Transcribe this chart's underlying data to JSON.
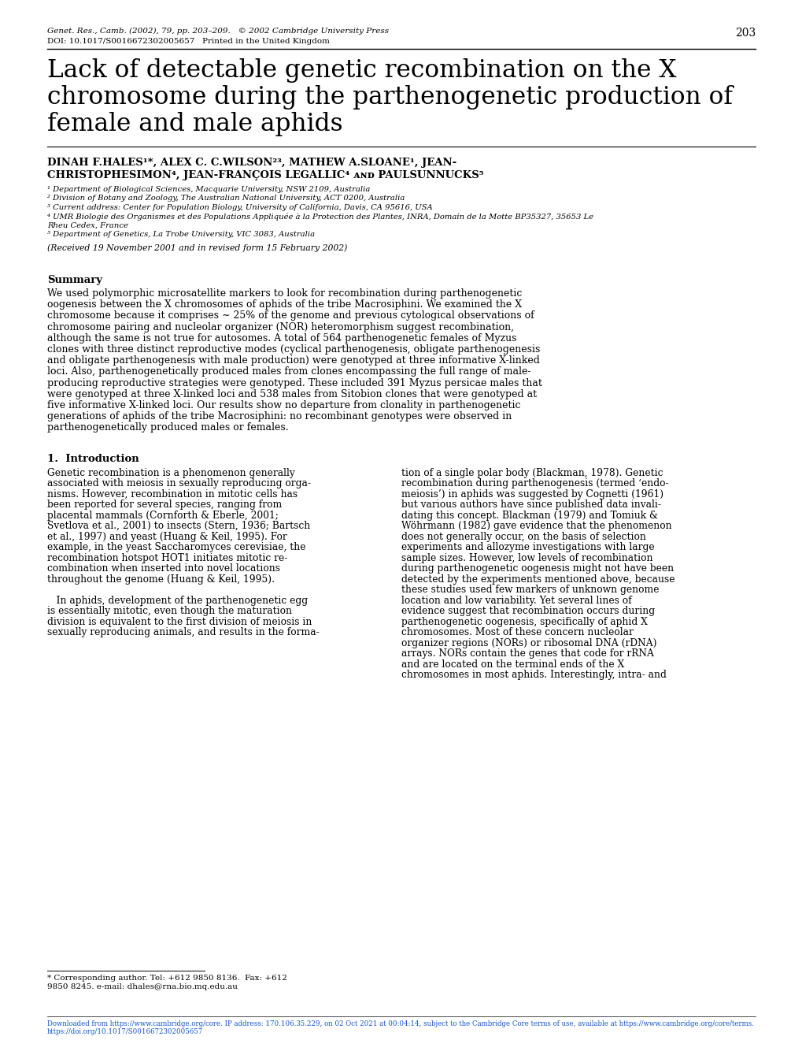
{
  "background_color": "#ffffff",
  "header_journal": "Genet. Res., Camb. (2002), 79, pp. 203–209.   © 2002 Cambridge University Press",
  "header_doi": "DOI: 10.1017/S0016672302005657   Printed in the United Kingdom",
  "header_page": "203",
  "title_line1": "Lack of detectable genetic recombination on the X",
  "title_line2": "chromosome during the parthenogenetic production of",
  "title_line3": "female and male aphids",
  "authors_line1": "DINAH F.HALES¹*, ALEX C. C.WILSON²‧³, MATHEW A.SLOANE¹, JEAN-",
  "authors_line2": "CHRISTOPHESIMON⁴, JEAN-FRANÇOIS LEGALLIC⁴ ᴀɴᴅ PAULSUNNUCKS⁵",
  "affil1": "¹ Department of Biological Sciences, Macquarie University, NSW 2109, Australia",
  "affil2": "² Division of Botany and Zoology, The Australian National University, ACT 0200, Australia",
  "affil3": "³ Current address: Center for Population Biology, University of California, Davis, CA 95616, USA",
  "affil4a": "⁴ UMR Biologie des Organismes et des Populations Appliquée à la Protection des Plantes, INRA, Domain de la Motte BP35327, 35653 Le",
  "affil4b": "Rheu Cedex, France",
  "affil5": "⁵ Department of Genetics, La Trobe University, VIC 3083, Australia",
  "received": "(Received 19 November 2001 and in revised form 15 February 2002)",
  "summary_title": "Summary",
  "summary_text_lines": [
    "We used polymorphic microsatellite markers to look for recombination during parthenogenetic",
    "oogenesis between the X chromosomes of aphids of the tribe Macrosiphini. We examined the X",
    "chromosome because it comprises ∼ 25% of the genome and previous cytological observations of",
    "chromosome pairing and nucleolar organizer (NOR) heteromorphism suggest recombination,",
    "although the same is not true for autosomes. A total of 564 parthenogenetic females of Myzus",
    "clones with three distinct reproductive modes (cyclical parthenogenesis, obligate parthenogenesis",
    "and obligate parthenogenesis with male production) were genotyped at three informative X-linked",
    "loci. Also, parthenogenetically produced males from clones encompassing the full range of male-",
    "producing reproductive strategies were genotyped. These included 391 Myzus persicae males that",
    "were genotyped at three X-linked loci and 538 males from Sitobion clones that were genotyped at",
    "five informative X-linked loci. Our results show no departure from clonality in parthenogenetic",
    "generations of aphids of the tribe Macrosiphini: no recombinant genotypes were observed in",
    "parthenogenetically produced males or females."
  ],
  "intro_title": "1.  Introduction",
  "intro_col1_lines": [
    "Genetic recombination is a phenomenon generally",
    "associated with meiosis in sexually reproducing orga-",
    "nisms. However, recombination in mitotic cells has",
    "been reported for several species, ranging from",
    "placental mammals (Cornforth & Eberle, 2001;",
    "Svetlova et al., 2001) to insects (Stern, 1936; Bartsch",
    "et al., 1997) and yeast (Huang & Keil, 1995). For",
    "example, in the yeast Saccharomyces cerevisiae, the",
    "recombination hotspot HOT1 initiates mitotic re-",
    "combination when inserted into novel locations",
    "throughout the genome (Huang & Keil, 1995).",
    "",
    "   In aphids, development of the parthenogenetic egg",
    "is essentially mitotic, even though the maturation",
    "division is equivalent to the first division of meiosis in",
    "sexually reproducing animals, and results in the forma-"
  ],
  "intro_col2_lines": [
    "tion of a single polar body (Blackman, 1978). Genetic",
    "recombination during parthenogenesis (termed ‘endo-",
    "meiosis’) in aphids was suggested by Cognetti (1961)",
    "but various authors have since published data invali-",
    "dating this concept. Blackman (1979) and Tomiuk &",
    "Wöhrmann (1982) gave evidence that the phenomenon",
    "does not generally occur, on the basis of selection",
    "experiments and allozyme investigations with large",
    "sample sizes. However, low levels of recombination",
    "during parthenogenetic oogenesis might not have been",
    "detected by the experiments mentioned above, because",
    "these studies used few markers of unknown genome",
    "location and low variability. Yet several lines of",
    "evidence suggest that recombination occurs during",
    "parthenogenetic oogenesis, specifically of aphid X",
    "chromosomes. Most of these concern nucleolar",
    "organizer regions (NORs) or ribosomal DNA (rDNA)",
    "arrays. NORs contain the genes that code for rRNA",
    "and are located on the terminal ends of the X",
    "chromosomes in most aphids. Interestingly, intra- and"
  ],
  "footnote_line1": "* Corresponding author. Tel: +612 9850 8136.  Fax: +612",
  "footnote_line2": "9850 8245. e-mail: dhales@rna.bio.mq.edu.au",
  "footer_text": "Downloaded from https://www.cambridge.org/core. IP address: 170.106.35.229, on 02 Oct 2021 at 00:04:14, subject to the Cambridge Core terms of use, available at https://www.cambridge.org/core/terms.",
  "footer_text2": "https://doi.org/10.1017/S0016672302005657"
}
